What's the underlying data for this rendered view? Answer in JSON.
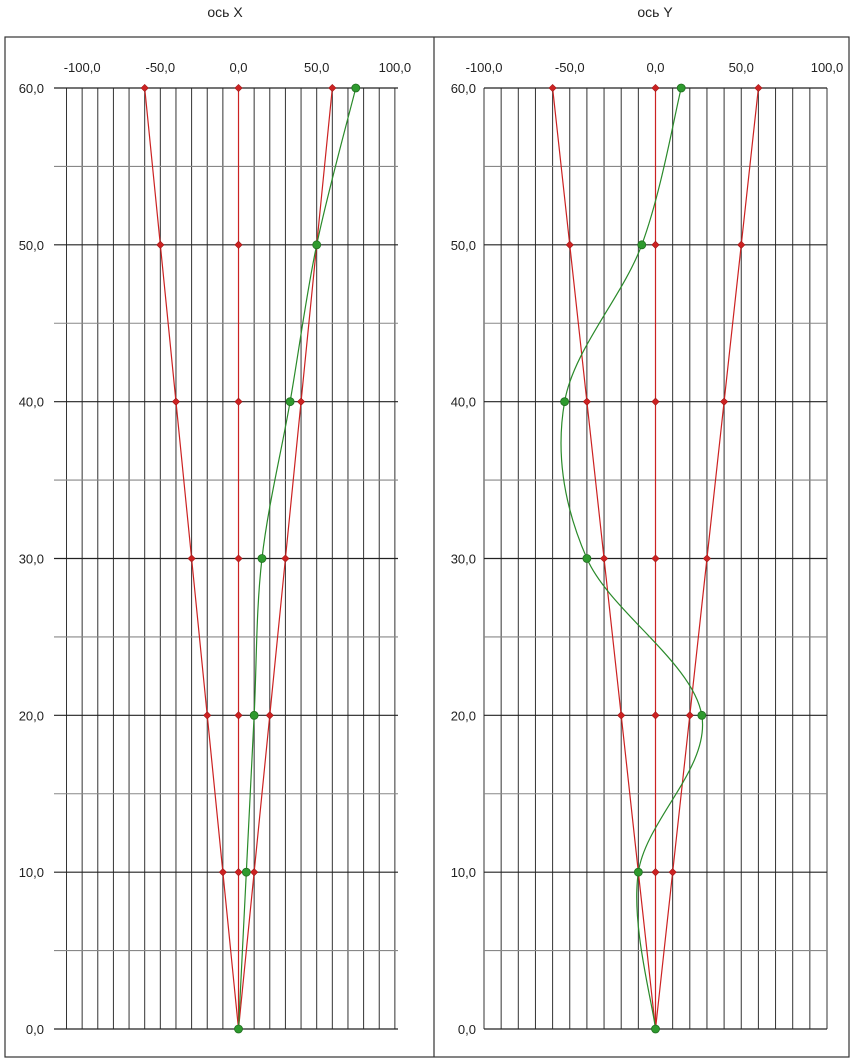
{
  "chart_data": [
    {
      "type": "line",
      "title": "ось X",
      "xlabel": "",
      "ylabel": "",
      "xlim": [
        -118,
        102
      ],
      "ylim": [
        0,
        60
      ],
      "x_ticks": [
        -100,
        -50,
        0,
        50,
        100
      ],
      "x_tick_labels": [
        "-100,0",
        "-50,0",
        "0,0",
        "50,0",
        "100,0"
      ],
      "y_ticks": [
        0,
        10,
        20,
        30,
        40,
        50,
        60
      ],
      "y_tick_labels": [
        "0,0",
        "10,0",
        "20,0",
        "30,0",
        "40,0",
        "50,0",
        "60,0"
      ],
      "grid": true,
      "series": [
        {
          "color": "#cc2222",
          "smooth": false,
          "marker": "diamond",
          "points": [
            [
              0,
              0
            ],
            [
              -10,
              10
            ],
            [
              -20,
              20
            ],
            [
              -30,
              30
            ],
            [
              -40,
              40
            ],
            [
              -50,
              50
            ],
            [
              -60,
              60
            ]
          ]
        },
        {
          "color": "#cc2222",
          "smooth": false,
          "marker": "diamond",
          "points": [
            [
              0,
              0
            ],
            [
              0,
              10
            ],
            [
              0,
              20
            ],
            [
              0,
              30
            ],
            [
              0,
              40
            ],
            [
              0,
              50
            ],
            [
              0,
              60
            ]
          ]
        },
        {
          "color": "#cc2222",
          "smooth": false,
          "marker": "diamond",
          "points": [
            [
              0,
              0
            ],
            [
              10,
              10
            ],
            [
              20,
              20
            ],
            [
              30,
              30
            ],
            [
              40,
              40
            ],
            [
              50,
              50
            ],
            [
              60,
              60
            ]
          ]
        },
        {
          "color": "#2a8a2a",
          "smooth": true,
          "marker": "circle",
          "points": [
            [
              0,
              0
            ],
            [
              5,
              10
            ],
            [
              10,
              20
            ],
            [
              15,
              30
            ],
            [
              33,
              40
            ],
            [
              50,
              50
            ],
            [
              75,
              60
            ]
          ]
        }
      ]
    },
    {
      "type": "line",
      "title": "ось Y",
      "xlabel": "",
      "ylabel": "",
      "xlim": [
        -100,
        100
      ],
      "ylim": [
        0,
        60
      ],
      "x_ticks": [
        -100,
        -50,
        0,
        50,
        100
      ],
      "x_tick_labels": [
        "-100,0",
        "-50,0",
        "0,0",
        "50,0",
        "100,0"
      ],
      "y_ticks": [
        0,
        10,
        20,
        30,
        40,
        50,
        60
      ],
      "y_tick_labels": [
        "0,0",
        "10,0",
        "20,0",
        "30,0",
        "40,0",
        "50,0",
        "60,0"
      ],
      "grid": true,
      "series": [
        {
          "color": "#cc2222",
          "smooth": false,
          "marker": "diamond",
          "points": [
            [
              0,
              0
            ],
            [
              -10,
              10
            ],
            [
              -20,
              20
            ],
            [
              -30,
              30
            ],
            [
              -40,
              40
            ],
            [
              -50,
              50
            ],
            [
              -60,
              60
            ]
          ]
        },
        {
          "color": "#cc2222",
          "smooth": false,
          "marker": "diamond",
          "points": [
            [
              0,
              0
            ],
            [
              0,
              10
            ],
            [
              0,
              20
            ],
            [
              0,
              30
            ],
            [
              0,
              40
            ],
            [
              0,
              50
            ],
            [
              0,
              60
            ]
          ]
        },
        {
          "color": "#cc2222",
          "smooth": false,
          "marker": "diamond",
          "points": [
            [
              0,
              0
            ],
            [
              10,
              10
            ],
            [
              20,
              20
            ],
            [
              30,
              30
            ],
            [
              40,
              40
            ],
            [
              50,
              50
            ],
            [
              60,
              60
            ]
          ]
        },
        {
          "color": "#2a8a2a",
          "smooth": true,
          "marker": "circle",
          "points": [
            [
              0,
              0
            ],
            [
              -10,
              10
            ],
            [
              27,
              20
            ],
            [
              -40,
              30
            ],
            [
              -53,
              40
            ],
            [
              -8,
              50
            ],
            [
              15,
              60
            ]
          ]
        }
      ]
    }
  ]
}
